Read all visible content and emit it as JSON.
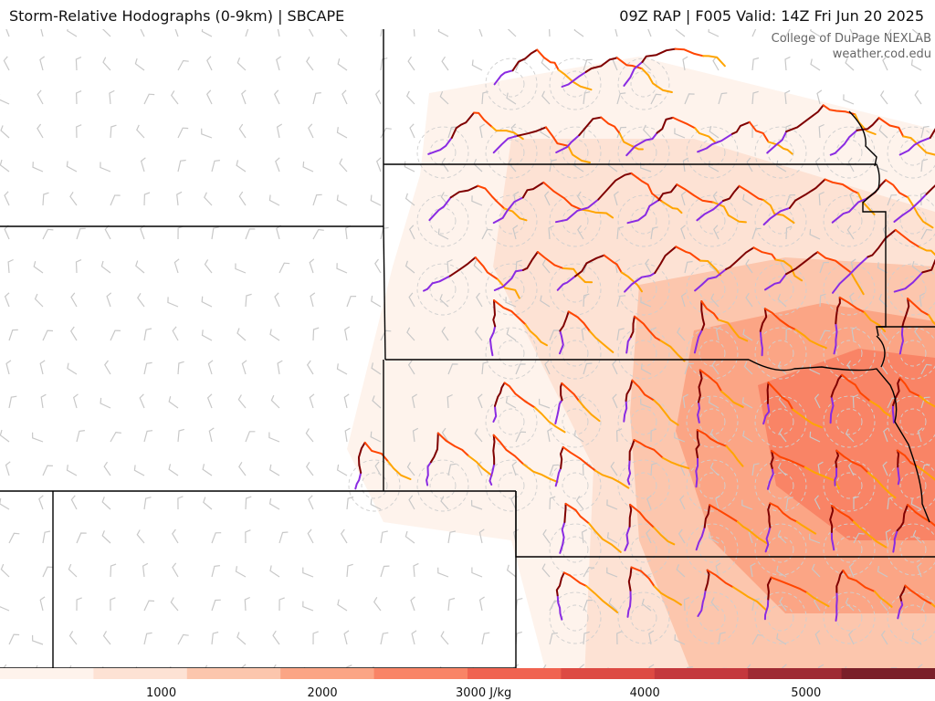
{
  "header": {
    "title": "Storm-Relative Hodographs (0-9km) | SBCAPE",
    "run_info": "09Z RAP | F005 Valid: 14Z Fri Jun 20 2025"
  },
  "credit": {
    "line1": "College of DuPage NEXLAB",
    "line2": "weather.cod.edu"
  },
  "colorbar": {
    "ticks": [
      "1000",
      "2000",
      "3000 J/kg",
      "4000",
      "5000"
    ],
    "tick_values": [
      1000,
      2000,
      3000,
      4000,
      5000
    ],
    "range": [
      0,
      5800
    ],
    "colors": [
      "#fef3ec",
      "#fde2d4",
      "#fcc6ad",
      "#fba585",
      "#f98466",
      "#f06350",
      "#dd4a43",
      "#c4383d",
      "#9e2a33",
      "#7a1f29"
    ]
  },
  "hodograph_colors": {
    "0-1km": "#8a2be2",
    "1-3km": "#7f0000",
    "3-6km": "#ff4500",
    "6-9km": "#ffa500"
  }
}
